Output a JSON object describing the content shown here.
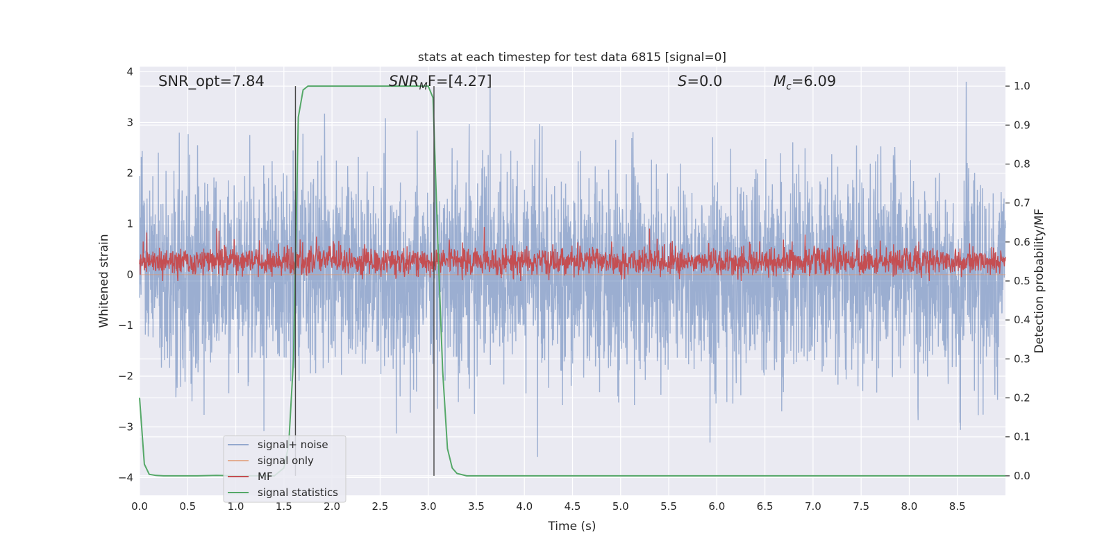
{
  "chart_data": {
    "type": "line",
    "title": "stats at each timestep for test data 6815 [signal=0]",
    "xlabel": "Time (s)",
    "ylabel_left": "Whitened strain",
    "ylabel_right": "Detection probability/MF",
    "xlim": [
      0,
      9
    ],
    "ylim_left": [
      -4.35,
      4.1
    ],
    "ylim_right": [
      -0.05,
      1.05
    ],
    "x_ticks": [
      0.0,
      0.5,
      1.0,
      1.5,
      2.0,
      2.5,
      3.0,
      3.5,
      4.0,
      4.5,
      5.0,
      5.5,
      6.0,
      6.5,
      7.0,
      7.5,
      8.0,
      8.5
    ],
    "x_tick_labels": [
      "0.0",
      "0.5",
      "1.0",
      "1.5",
      "2.0",
      "2.5",
      "3.0",
      "3.5",
      "4.0",
      "4.5",
      "5.0",
      "5.5",
      "6.0",
      "6.5",
      "7.0",
      "7.5",
      "8.0",
      "8.5"
    ],
    "y_left_ticks": [
      -4,
      -3,
      -2,
      -1,
      0,
      1,
      2,
      3,
      4
    ],
    "y_left_tick_labels": [
      "−4",
      "−3",
      "−2",
      "−1",
      "0",
      "1",
      "2",
      "3",
      "4"
    ],
    "y_right_ticks": [
      0.0,
      0.1,
      0.2,
      0.3,
      0.4,
      0.5,
      0.6,
      0.7,
      0.8,
      0.9,
      1.0
    ],
    "y_right_tick_labels": [
      "0.0",
      "0.1",
      "0.2",
      "0.3",
      "0.4",
      "0.5",
      "0.6",
      "0.7",
      "0.8",
      "0.9",
      "1.0"
    ],
    "grid": true,
    "legend_position": "lower-left",
    "annotations": {
      "snr_opt": "SNR_opt=7.84",
      "snr_mf_base": "SNR",
      "snr_mf_sub": "M",
      "snr_mf_rest": "F=[4.27]",
      "s_var": "S",
      "s_rest": "=0.0",
      "mc_var": "M",
      "mc_sub": "c",
      "mc_rest": "=6.09"
    },
    "vertical_lines_x": [
      1.62,
      3.06
    ],
    "series": [
      {
        "name": "signal+ noise",
        "axis": "left",
        "color": "#4c72b0",
        "description_stats": {
          "mean": 0.0,
          "std": 1.0,
          "max": 3.8,
          "min": -4.0
        }
      },
      {
        "name": "signal only",
        "axis": "left",
        "color": "#dd8452",
        "values_constant": 0.0
      },
      {
        "name": "MF",
        "axis": "right",
        "color": "#c44e52",
        "description_stats": {
          "mean": 0.55,
          "min": 0.5,
          "max": 0.66
        }
      },
      {
        "name": "signal statistics",
        "axis": "right",
        "color": "#55a868",
        "x": [
          0.0,
          0.05,
          0.1,
          0.17,
          0.25,
          0.4,
          0.6,
          0.8,
          1.0,
          1.2,
          1.3,
          1.4,
          1.5,
          1.55,
          1.6,
          1.65,
          1.7,
          1.75,
          1.8,
          2.0,
          2.4,
          2.8,
          2.9,
          2.95,
          3.0,
          3.05,
          3.1,
          3.15,
          3.2,
          3.25,
          3.3,
          3.4,
          3.6,
          4.0,
          5.0,
          6.0,
          7.0,
          8.0,
          9.0
        ],
        "y": [
          0.2,
          0.03,
          0.004,
          0.001,
          0.0,
          0.0,
          0.0,
          0.001,
          0.0,
          0.0,
          0.0,
          0.0,
          0.02,
          0.08,
          0.3,
          0.92,
          0.99,
          1.0,
          1.0,
          1.0,
          1.0,
          1.0,
          1.0,
          1.0,
          1.0,
          0.97,
          0.6,
          0.27,
          0.07,
          0.02,
          0.006,
          0.0,
          0.0,
          0.0,
          0.0,
          0.0,
          0.0,
          0.0,
          0.0
        ]
      }
    ]
  }
}
